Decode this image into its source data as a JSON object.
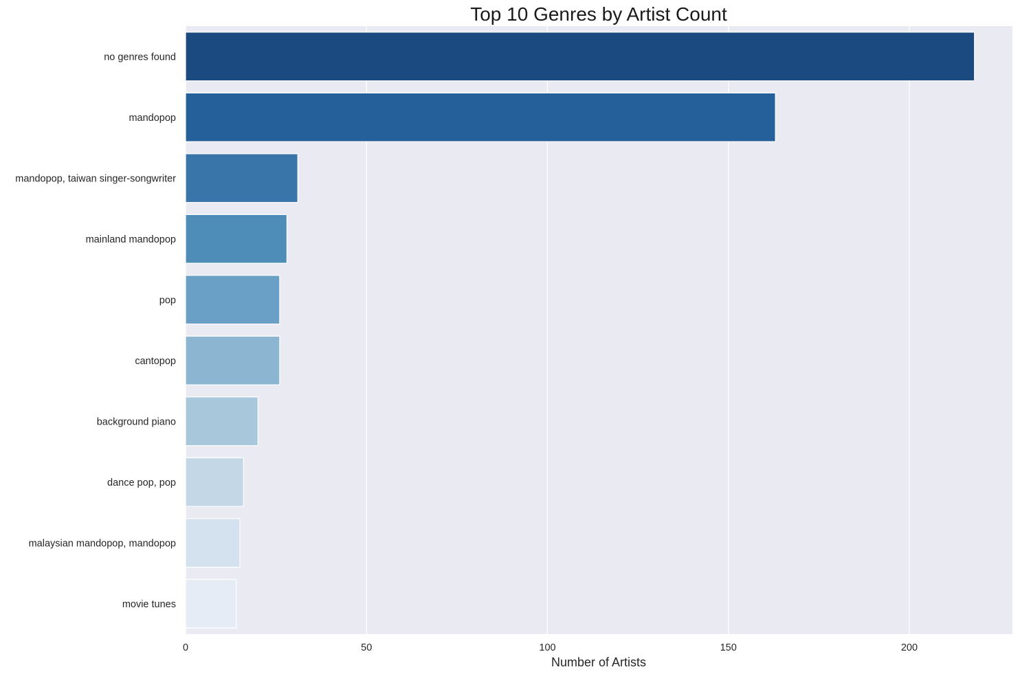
{
  "chart_data": {
    "type": "bar",
    "orientation": "horizontal",
    "title": "Top 10 Genres by Artist Count",
    "xlabel": "Number of Artists",
    "ylabel": "",
    "categories": [
      "no genres found",
      "mandopop",
      "mandopop, taiwan singer-songwriter",
      "mainland mandopop",
      "pop",
      "cantopop",
      "background piano",
      "dance pop, pop",
      "malaysian mandopop, mandopop",
      "movie tunes"
    ],
    "values": [
      218,
      163,
      31,
      28,
      26,
      26,
      20,
      16,
      15,
      14
    ],
    "xlim": [
      0,
      228.5
    ],
    "xticks": [
      0,
      50,
      100,
      150,
      200
    ],
    "grid": true,
    "legend": "none",
    "colors": [
      "#1b4a80",
      "#26609a",
      "#3975a9",
      "#4f8db9",
      "#6aa0c5",
      "#8bb5d0",
      "#a9c7db",
      "#c3d7e7",
      "#d4e1ee",
      "#e5ecf5"
    ],
    "plot_background": "#eaeaf2"
  }
}
